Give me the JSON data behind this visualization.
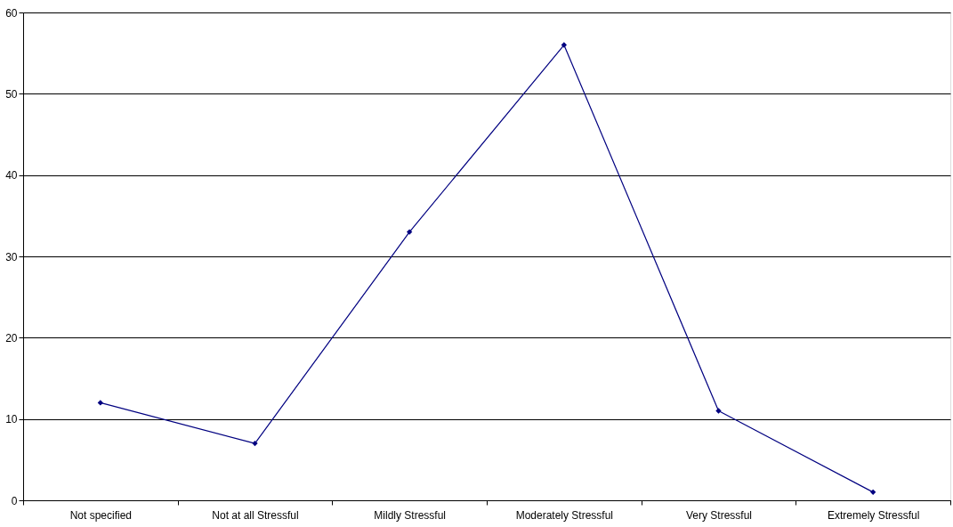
{
  "chart_data": {
    "type": "line",
    "categories": [
      "Not specified",
      "Not at all Stressful",
      "Mildly Stressful",
      "Moderately Stressful",
      "Very Stressful",
      "Extremely Stressful"
    ],
    "series": [
      {
        "color": "#000080",
        "values": [
          12,
          7,
          33,
          56,
          11,
          1
        ]
      }
    ],
    "ylim": [
      0,
      60
    ],
    "yticks": [
      0,
      10,
      20,
      30,
      40,
      50,
      60
    ],
    "grid": "y",
    "legend": false,
    "marker": "diamond",
    "line_style": "solid"
  }
}
